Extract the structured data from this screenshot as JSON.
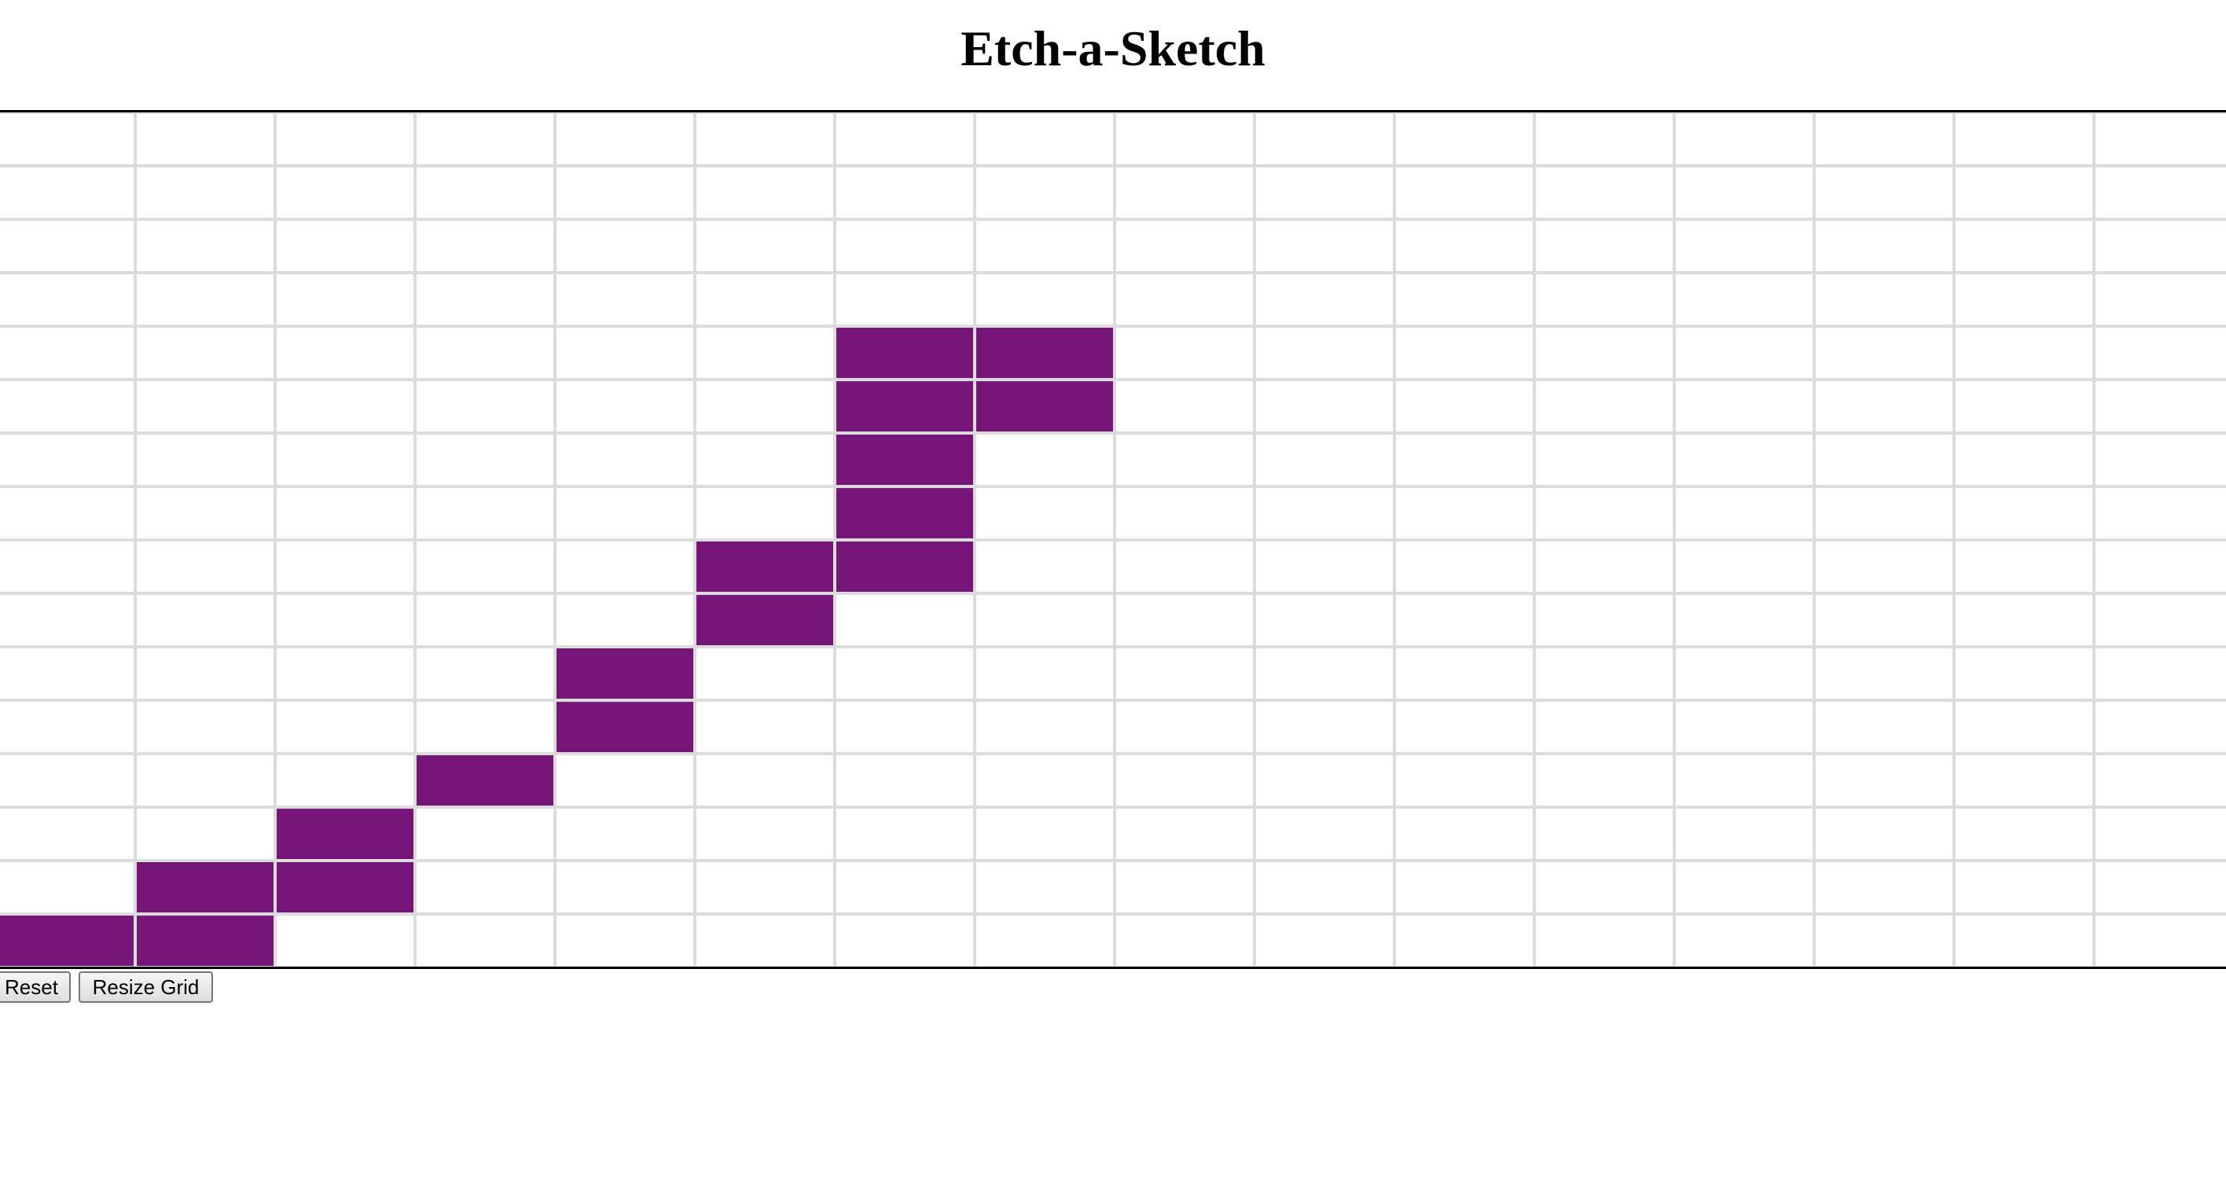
{
  "page": {
    "title": "Etch-a-Sketch"
  },
  "grid": {
    "columns": 16,
    "rows": 16,
    "fill_color": "#761679",
    "line_color": "#dcdcdc",
    "filled_cells": [
      [
        4,
        6
      ],
      [
        4,
        7
      ],
      [
        5,
        6
      ],
      [
        5,
        7
      ],
      [
        6,
        6
      ],
      [
        7,
        6
      ],
      [
        8,
        5
      ],
      [
        8,
        6
      ],
      [
        9,
        5
      ],
      [
        10,
        4
      ],
      [
        11,
        4
      ],
      [
        12,
        3
      ],
      [
        13,
        2
      ],
      [
        14,
        1
      ],
      [
        14,
        2
      ],
      [
        15,
        0
      ],
      [
        15,
        1
      ]
    ]
  },
  "controls": {
    "reset_label": "Reset",
    "resize_label": "Resize Grid"
  }
}
